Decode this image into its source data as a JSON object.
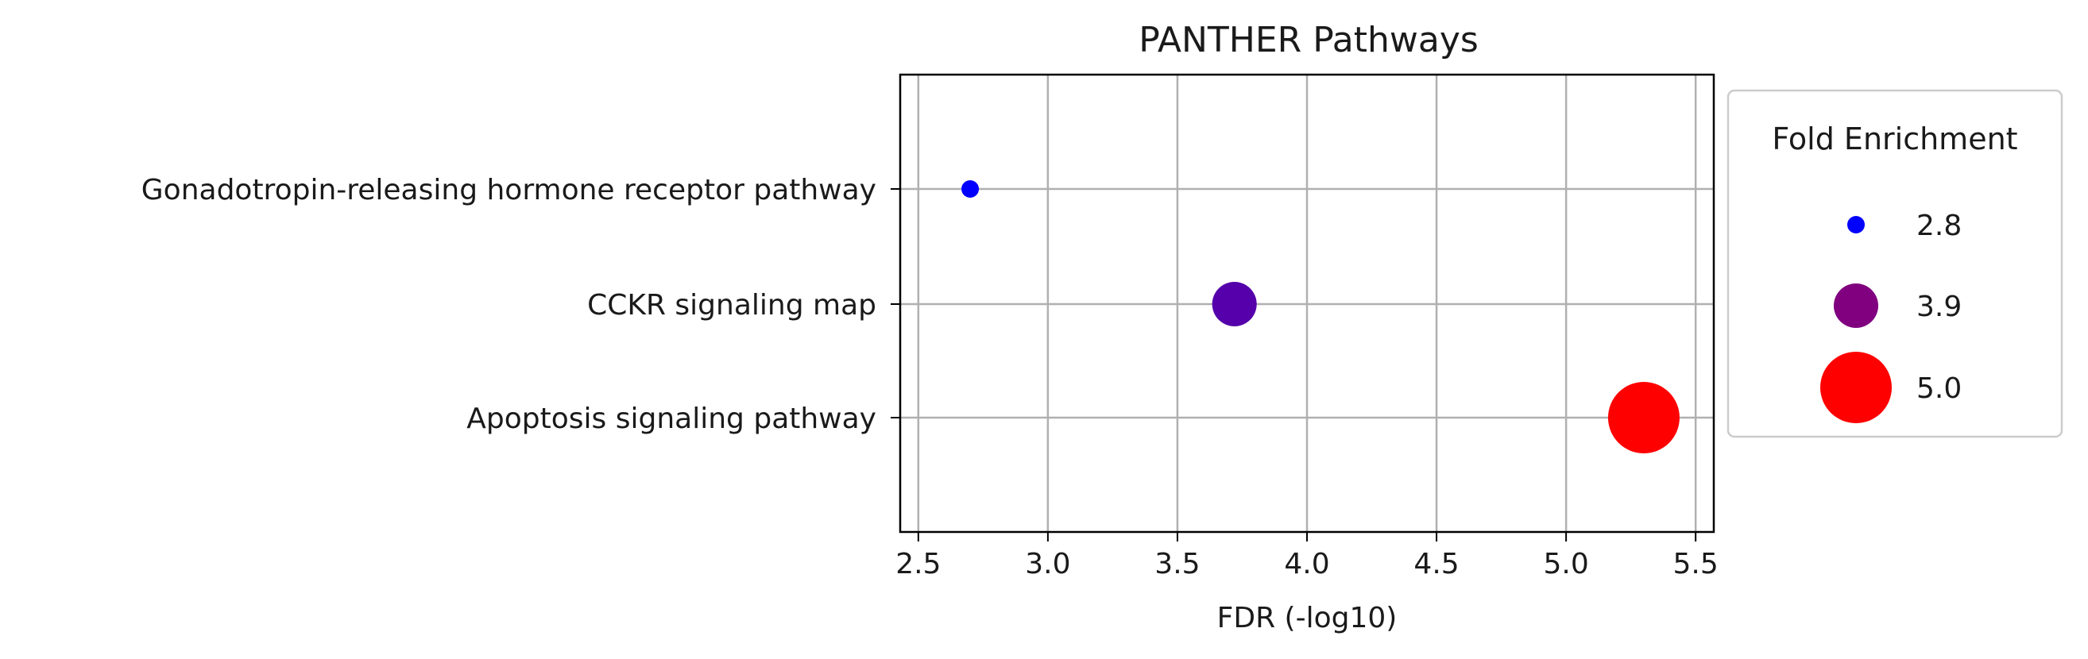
{
  "chart_data": {
    "type": "scatter",
    "title": "PANTHER Pathways",
    "xlabel": "FDR (-log10)",
    "ylabel": "",
    "xlim": [
      2.43,
      5.57
    ],
    "xticks": [
      "2.5",
      "3.0",
      "3.5",
      "4.0",
      "4.5",
      "5.0",
      "5.5"
    ],
    "grid": true,
    "categories": [
      "Gonadotropin-releasing hormone receptor pathway",
      "CCKR signaling map",
      "Apoptosis signaling pathway"
    ],
    "points": [
      {
        "category": "Gonadotropin-releasing hormone receptor pathway",
        "x": 2.7,
        "fold_enrichment": 2.8,
        "color": "#0000ff"
      },
      {
        "category": "CCKR signaling map",
        "x": 3.72,
        "fold_enrichment": 3.9,
        "color": "#5500aa"
      },
      {
        "category": "Apoptosis signaling pathway",
        "x": 5.3,
        "fold_enrichment": 5.0,
        "color": "#ff0000"
      }
    ],
    "legend": {
      "title": "Fold Enrichment",
      "placement": "outside-right",
      "entries": [
        {
          "label": "2.8",
          "value": 2.8,
          "color": "#0000ff"
        },
        {
          "label": "3.9",
          "value": 3.9,
          "color": "#800080"
        },
        {
          "label": "5.0",
          "value": 5.0,
          "color": "#ff0000"
        }
      ]
    }
  }
}
